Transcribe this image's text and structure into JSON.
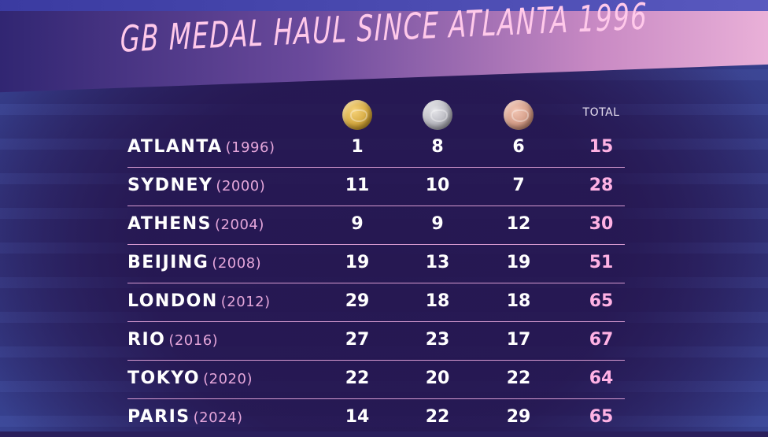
{
  "title": "GB MEDAL HAUL SINCE ATLANTA 1996",
  "columns": {
    "gold_icon": "gold-medal",
    "silver_icon": "silver-medal",
    "bronze_icon": "bronze-medal",
    "total": "TOTAL"
  },
  "colors": {
    "title": "#ffc9ea",
    "year": "#e4a6da",
    "total": "#ffb2e4",
    "divider": "#d69ad0",
    "background": "#2a1f5c"
  },
  "rows": [
    {
      "city": "ATLANTA",
      "year": "(1996)",
      "gold": "1",
      "silver": "8",
      "bronze": "6",
      "total": "15"
    },
    {
      "city": "SYDNEY",
      "year": "(2000)",
      "gold": "11",
      "silver": "10",
      "bronze": "7",
      "total": "28"
    },
    {
      "city": "ATHENS",
      "year": "(2004)",
      "gold": "9",
      "silver": "9",
      "bronze": "12",
      "total": "30"
    },
    {
      "city": "BEIJING",
      "year": "(2008)",
      "gold": "19",
      "silver": "13",
      "bronze": "19",
      "total": "51"
    },
    {
      "city": "LONDON",
      "year": "(2012)",
      "gold": "29",
      "silver": "18",
      "bronze": "18",
      "total": "65"
    },
    {
      "city": "RIO",
      "year": "(2016)",
      "gold": "27",
      "silver": "23",
      "bronze": "17",
      "total": "67"
    },
    {
      "city": "TOKYO",
      "year": "(2020)",
      "gold": "22",
      "silver": "20",
      "bronze": "22",
      "total": "64"
    },
    {
      "city": "PARIS",
      "year": "(2024)",
      "gold": "14",
      "silver": "22",
      "bronze": "29",
      "total": "65"
    }
  ]
}
